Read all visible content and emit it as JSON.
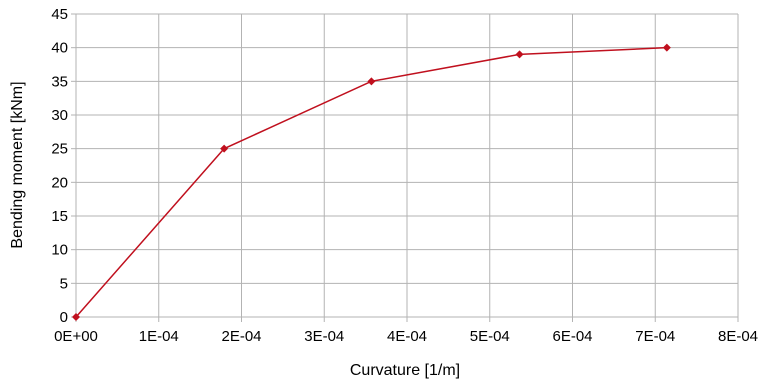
{
  "chart_data": {
    "type": "line",
    "title": "",
    "xlabel": "Curvature [1/m]",
    "ylabel": "Bending moment [kNm]",
    "xlim": [
      0,
      0.0008
    ],
    "ylim": [
      0,
      45
    ],
    "x_ticks": [
      0,
      0.0001,
      0.0002,
      0.0003,
      0.0004,
      0.0005,
      0.0006,
      0.0007,
      0.0008
    ],
    "x_tick_labels": [
      "0E+00",
      "1E-04",
      "2E-04",
      "3E-04",
      "4E-04",
      "5E-04",
      "6E-04",
      "7E-04",
      "8E-04"
    ],
    "y_ticks": [
      0,
      5,
      10,
      15,
      20,
      25,
      30,
      35,
      40,
      45
    ],
    "y_tick_labels": [
      "0",
      "5",
      "10",
      "15",
      "20",
      "25",
      "30",
      "35",
      "40",
      "45"
    ],
    "grid": true,
    "legend": "none",
    "series": [
      {
        "color": "#c0101e",
        "marker": "diamond",
        "x": [
          0,
          0.000179,
          0.000357,
          0.000536,
          0.000714
        ],
        "y": [
          0,
          25,
          35,
          39,
          40
        ]
      }
    ]
  }
}
